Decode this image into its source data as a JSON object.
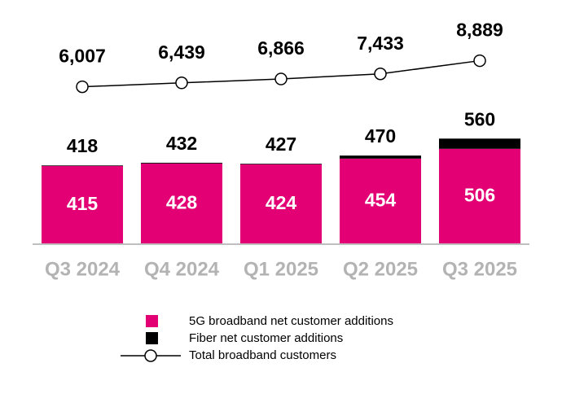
{
  "chart_data": {
    "type": "bar-line",
    "categories": [
      "Q3 2024",
      "Q4 2024",
      "Q1 2025",
      "Q2 2025",
      "Q3 2025"
    ],
    "totals": [
      418,
      432,
      427,
      470,
      560
    ],
    "series": [
      {
        "name": "5G broadband net customer additions",
        "color": "#e20074",
        "values": [
          415,
          428,
          424,
          454,
          506
        ]
      },
      {
        "name": "Fiber net customer additions",
        "color": "#000000",
        "values": [
          3,
          4,
          3,
          16,
          54
        ]
      },
      {
        "name": "Total broadband customers",
        "color": "#000000",
        "type": "line",
        "axis": "y2",
        "values": [
          6007,
          6439,
          6866,
          7433,
          8889
        ],
        "value_labels": [
          "6,007",
          "6,439",
          "6,866",
          "7,433",
          "8,889"
        ]
      }
    ],
    "ylim": [
      0,
      600
    ],
    "y2lim": [
      4800,
      10200
    ],
    "stacked": true
  }
}
